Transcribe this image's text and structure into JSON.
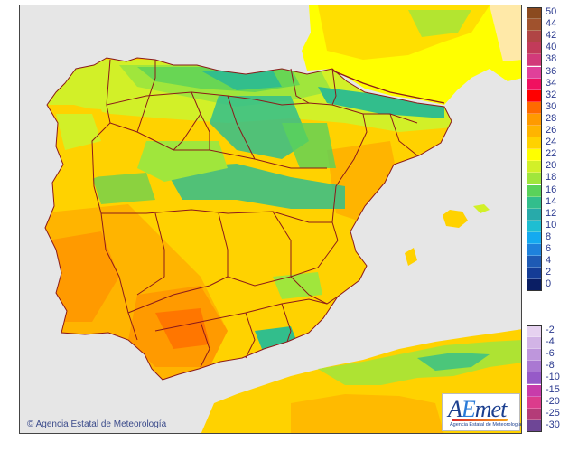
{
  "attribution": "© Agencia Estatal de Meteorología",
  "logo": {
    "wordmark_a": "A",
    "wordmark_e": "E",
    "wordmark_rest": "met",
    "subtitle": "Agencia Estatal de Meteorología"
  },
  "legend_positive": [
    {
      "label": "50",
      "color": "#8b4a1f"
    },
    {
      "label": "44",
      "color": "#a0522d"
    },
    {
      "label": "42",
      "color": "#b04545"
    },
    {
      "label": "40",
      "color": "#c23b5a"
    },
    {
      "label": "38",
      "color": "#d23a7a"
    },
    {
      "label": "36",
      "color": "#e0409a"
    },
    {
      "label": "34",
      "color": "#f01060"
    },
    {
      "label": "32",
      "color": "#ff0000"
    },
    {
      "label": "30",
      "color": "#ff6a00"
    },
    {
      "label": "28",
      "color": "#ff9a00"
    },
    {
      "label": "26",
      "color": "#ffb400"
    },
    {
      "label": "24",
      "color": "#ffd200"
    },
    {
      "label": "22",
      "color": "#ffff00"
    },
    {
      "label": "20",
      "color": "#d2f028"
    },
    {
      "label": "18",
      "color": "#a0e63c"
    },
    {
      "label": "16",
      "color": "#5ad25a"
    },
    {
      "label": "14",
      "color": "#32be8c"
    },
    {
      "label": "12",
      "color": "#28aaaa"
    },
    {
      "label": "10",
      "color": "#1ebed2"
    },
    {
      "label": "8",
      "color": "#14aaf0"
    },
    {
      "label": "6",
      "color": "#1e82dc"
    },
    {
      "label": "4",
      "color": "#1e5ab4"
    },
    {
      "label": "2",
      "color": "#143c96"
    },
    {
      "label": "0",
      "color": "#0a1e64"
    }
  ],
  "legend_negative": [
    {
      "label": "-2",
      "color": "#e6d2f0"
    },
    {
      "label": "-4",
      "color": "#d2b4e6"
    },
    {
      "label": "-6",
      "color": "#be96dc"
    },
    {
      "label": "-8",
      "color": "#aa78d2"
    },
    {
      "label": "-10",
      "color": "#965ac8"
    },
    {
      "label": "-15",
      "color": "#c83caa"
    },
    {
      "label": "-20",
      "color": "#dc3c8c"
    },
    {
      "label": "-25",
      "color": "#b43c78"
    },
    {
      "label": "-30",
      "color": "#6e4696"
    }
  ],
  "colors": {
    "sea": "#e6e6e6",
    "land_hot": "#ff9a00",
    "land_warm": "#ffb400",
    "land_mild": "#ffd200",
    "land_cool": "#d2f028",
    "land_cold": "#32be8c",
    "border": "#8b1a1a",
    "france": "#ffff00",
    "africa": "#ffd200"
  }
}
